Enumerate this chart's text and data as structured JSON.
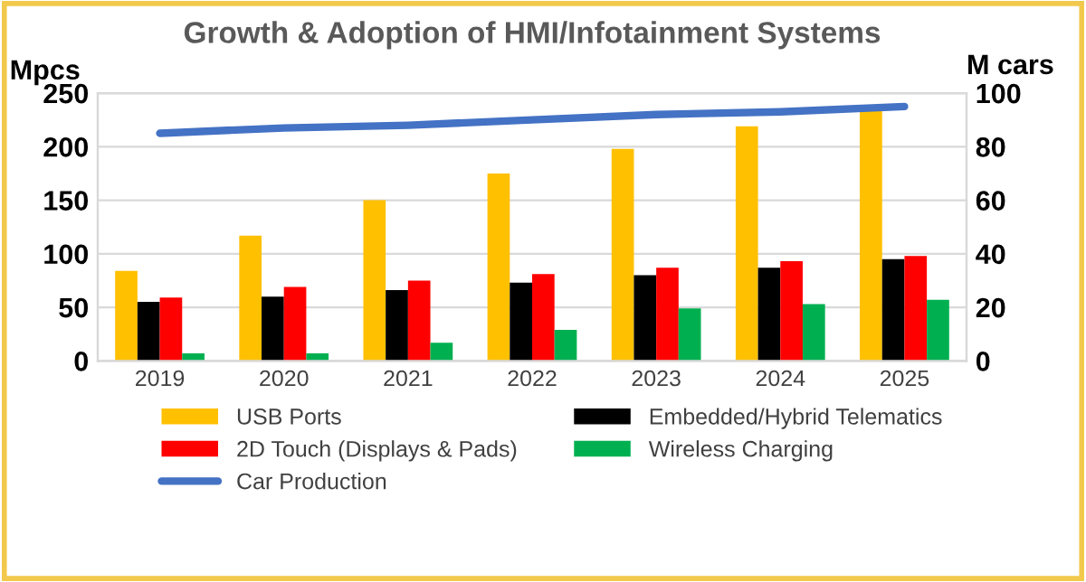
{
  "chart_data": {
    "type": "bar",
    "title": "Growth & Adoption of HMI/Infotainment Systems",
    "ylabel": "Mpcs",
    "y2label": "M cars",
    "categories": [
      "2019",
      "2020",
      "2021",
      "2022",
      "2023",
      "2024",
      "2025"
    ],
    "series": [
      {
        "name": "USB Ports",
        "color": "#ffc000",
        "values": [
          84,
          117,
          150,
          175,
          198,
          219,
          235
        ]
      },
      {
        "name": "Embedded/Hybrid Telematics",
        "color": "#000000",
        "values": [
          55,
          60,
          66,
          73,
          80,
          87,
          95
        ]
      },
      {
        "name": "2D Touch (Displays & Pads)",
        "color": "#ff0000",
        "values": [
          59,
          69,
          75,
          81,
          87,
          93,
          98
        ]
      },
      {
        "name": "Wireless Charging",
        "color": "#00b050",
        "values": [
          7,
          7,
          17,
          29,
          49,
          53,
          57
        ]
      },
      {
        "name": "Car Production",
        "color": "#4472c4",
        "type": "line",
        "axis": "y2",
        "values": [
          85,
          87,
          88,
          90,
          92,
          93,
          95
        ]
      }
    ],
    "ylim": [
      0,
      250
    ],
    "yticks": [
      0,
      50,
      100,
      150,
      200,
      250
    ],
    "y2lim": [
      0,
      100
    ],
    "y2ticks": [
      0,
      20,
      40,
      60,
      80,
      100
    ],
    "grid": "y",
    "legend": "bottom"
  }
}
